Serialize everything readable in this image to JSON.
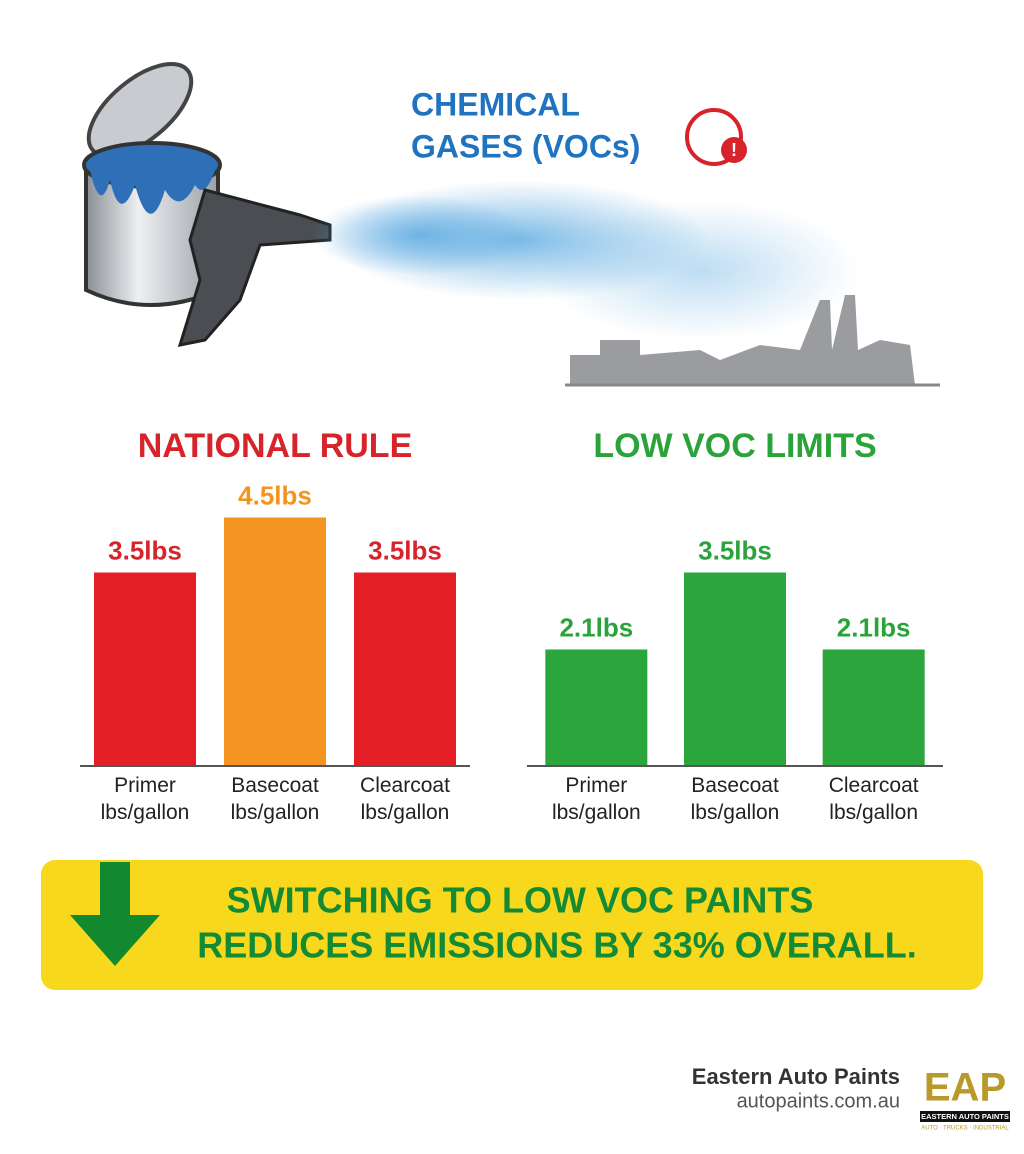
{
  "illustration": {
    "label_lines": [
      "CHEMICAL",
      "GASES (VOCs)"
    ]
  },
  "chart_data": [
    {
      "type": "bar",
      "title": "NATIONAL RULE",
      "title_color": "#d7232a",
      "categories": [
        "Primer lbs/gallon",
        "Basecoat lbs/gallon",
        "Clearcoat lbs/gallon"
      ],
      "values": [
        3.5,
        4.5,
        3.5
      ],
      "value_labels": [
        "3.5lbs",
        "4.5lbs",
        "3.5lbs"
      ],
      "colors": [
        "#e31e25",
        "#f39420",
        "#e31e25"
      ],
      "label_colors": [
        "#d7232a",
        "#f39420",
        "#d7232a"
      ]
    },
    {
      "type": "bar",
      "title": "LOW VOC LIMITS",
      "title_color": "#2ba33b",
      "categories": [
        "Primer lbs/gallon",
        "Basecoat lbs/gallon",
        "Clearcoat lbs/gallon"
      ],
      "values": [
        2.1,
        3.5,
        2.1
      ],
      "value_labels": [
        "2.1lbs",
        "3.5lbs",
        "2.1lbs"
      ],
      "colors": [
        "#2aa63c",
        "#2aa63c",
        "#2aa63c"
      ],
      "label_colors": [
        "#2ba33b",
        "#2ba33b",
        "#2ba33b"
      ]
    }
  ],
  "banner": {
    "lines": [
      "SWITCHING TO LOW VOC PAINTS",
      "REDUCES EMISSIONS BY 33% OVERALL."
    ]
  },
  "footer": {
    "company": "Eastern Auto Paints",
    "website": "autopaints.com.au",
    "logo": {
      "mark": "EAP",
      "name": "EASTERN AUTO PAINTS",
      "tagline": "AUTO · TRUCKS · INDUSTRIAL"
    }
  }
}
